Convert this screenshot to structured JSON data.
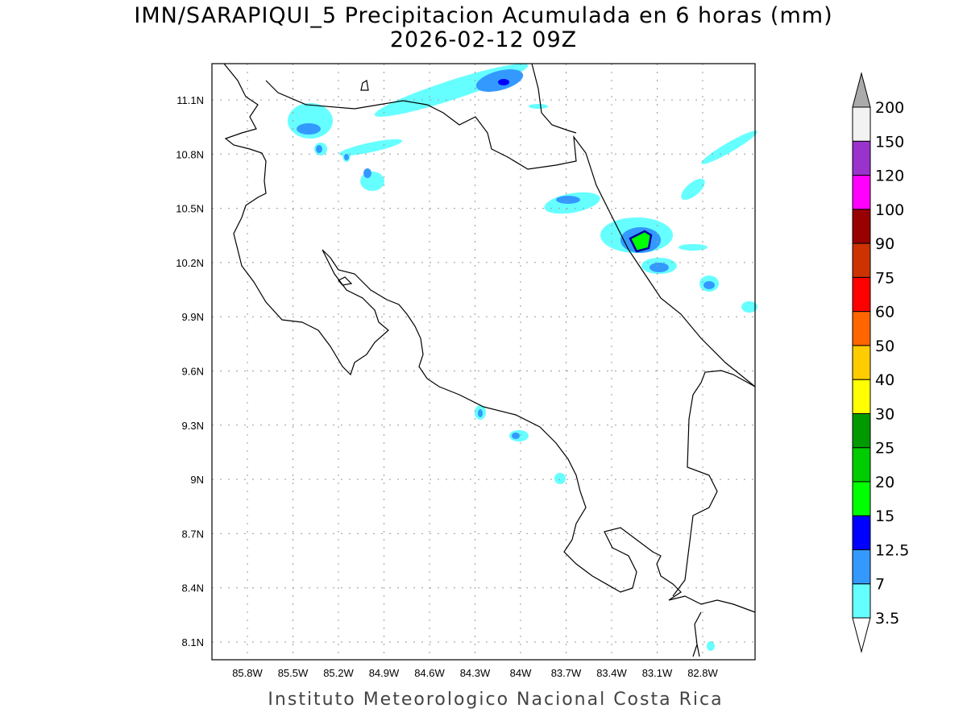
{
  "title": "IMN/SARAPIQUI_5 Precipitacion Acumulada en 6 horas (mm)",
  "subtitle": "2026-02-12 09Z",
  "credit": "Instituto Meteorologico Nacional Costa Rica",
  "map": {
    "lon_ticks": [
      "85.8W",
      "85.5W",
      "85.2W",
      "84.9W",
      "84.6W",
      "84.3W",
      "84W",
      "83.7W",
      "83.4W",
      "83.1W",
      "82.8W"
    ],
    "lat_ticks": [
      "11.1N",
      "10.8N",
      "10.5N",
      "10.2N",
      "9.9N",
      "9.6N",
      "9.3N",
      "9N",
      "8.7N",
      "8.4N",
      "8.1N"
    ]
  },
  "colorbar": {
    "labels": [
      "3.5",
      "7",
      "12.5",
      "15",
      "20",
      "25",
      "30",
      "40",
      "50",
      "60",
      "75",
      "90",
      "100",
      "120",
      "150",
      "200"
    ],
    "colors": [
      "#66ffff",
      "#3399ff",
      "#0000ff",
      "#00ff00",
      "#00cc00",
      "#009900",
      "#ffff00",
      "#ffcc00",
      "#ff6600",
      "#ff0000",
      "#cc3300",
      "#990000",
      "#ff00ff",
      "#9933cc",
      "#f2f2f2"
    ],
    "under_color": "#ffffff",
    "over_color": "#aaaaaa"
  }
}
